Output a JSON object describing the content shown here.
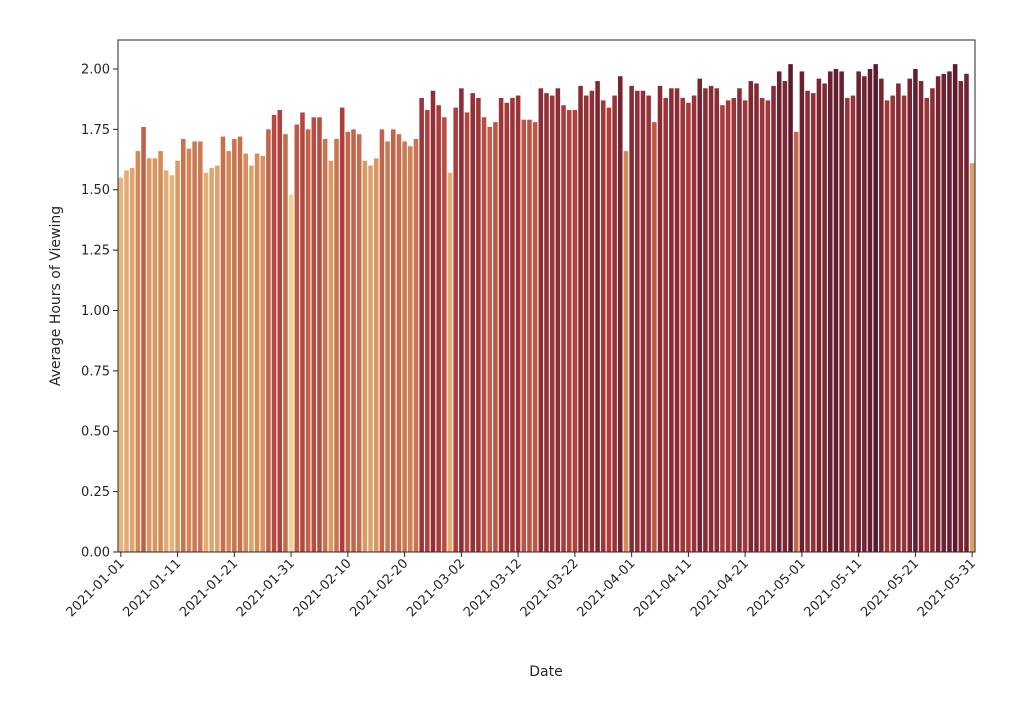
{
  "chart_data": {
    "type": "bar",
    "xlabel": "Date",
    "ylabel": "Average Hours of Viewing",
    "ylim": [
      0,
      2.12
    ],
    "yticks": [
      "0.00",
      "0.25",
      "0.50",
      "0.75",
      "1.00",
      "1.25",
      "1.50",
      "1.75",
      "2.00"
    ],
    "xtick_labels": [
      "2021-01-01",
      "2021-01-11",
      "2021-01-21",
      "2021-01-31",
      "2021-02-10",
      "2021-02-20",
      "2021-03-02",
      "2021-03-12",
      "2021-03-22",
      "2021-04-01",
      "2021-04-11",
      "2021-04-21",
      "2021-05-01",
      "2021-05-11",
      "2021-05-21",
      "2021-05-31"
    ],
    "grid": false,
    "colormap": [
      "#f1d494",
      "#d48a57",
      "#b13c3b",
      "#5c1a2c"
    ],
    "categories": [
      "2021-01-01",
      "2021-01-02",
      "2021-01-03",
      "2021-01-04",
      "2021-01-05",
      "2021-01-06",
      "2021-01-07",
      "2021-01-08",
      "2021-01-09",
      "2021-01-10",
      "2021-01-11",
      "2021-01-12",
      "2021-01-13",
      "2021-01-14",
      "2021-01-15",
      "2021-01-16",
      "2021-01-17",
      "2021-01-18",
      "2021-01-19",
      "2021-01-20",
      "2021-01-21",
      "2021-01-22",
      "2021-01-23",
      "2021-01-24",
      "2021-01-25",
      "2021-01-26",
      "2021-01-27",
      "2021-01-28",
      "2021-01-29",
      "2021-01-30",
      "2021-01-31",
      "2021-02-01",
      "2021-02-02",
      "2021-02-03",
      "2021-02-04",
      "2021-02-05",
      "2021-02-06",
      "2021-02-07",
      "2021-02-08",
      "2021-02-09",
      "2021-02-10",
      "2021-02-11",
      "2021-02-12",
      "2021-02-13",
      "2021-02-14",
      "2021-02-15",
      "2021-02-16",
      "2021-02-17",
      "2021-02-18",
      "2021-02-19",
      "2021-02-20",
      "2021-02-21",
      "2021-02-22",
      "2021-02-23",
      "2021-02-24",
      "2021-02-25",
      "2021-02-26",
      "2021-02-27",
      "2021-02-28",
      "2021-03-01",
      "2021-03-02",
      "2021-03-03",
      "2021-03-04",
      "2021-03-05",
      "2021-03-06",
      "2021-03-07",
      "2021-03-08",
      "2021-03-09",
      "2021-03-10",
      "2021-03-11",
      "2021-03-12",
      "2021-03-13",
      "2021-03-14",
      "2021-03-15",
      "2021-03-16",
      "2021-03-17",
      "2021-03-18",
      "2021-03-19",
      "2021-03-20",
      "2021-03-21",
      "2021-03-22",
      "2021-03-23",
      "2021-03-24",
      "2021-03-25",
      "2021-03-26",
      "2021-03-27",
      "2021-03-28",
      "2021-03-29",
      "2021-03-30",
      "2021-03-31",
      "2021-04-01",
      "2021-04-02",
      "2021-04-03",
      "2021-04-04",
      "2021-04-05",
      "2021-04-06",
      "2021-04-07",
      "2021-04-08",
      "2021-04-09",
      "2021-04-10",
      "2021-04-11",
      "2021-04-12",
      "2021-04-13",
      "2021-04-14",
      "2021-04-15",
      "2021-04-16",
      "2021-04-17",
      "2021-04-18",
      "2021-04-19",
      "2021-04-20",
      "2021-04-21",
      "2021-04-22",
      "2021-04-23",
      "2021-04-24",
      "2021-04-25",
      "2021-04-26",
      "2021-04-27",
      "2021-04-28",
      "2021-04-29",
      "2021-04-30",
      "2021-05-01",
      "2021-05-02",
      "2021-05-03",
      "2021-05-04",
      "2021-05-05",
      "2021-05-06",
      "2021-05-07",
      "2021-05-08",
      "2021-05-09",
      "2021-05-10",
      "2021-05-11",
      "2021-05-12",
      "2021-05-13",
      "2021-05-14",
      "2021-05-15",
      "2021-05-16",
      "2021-05-17",
      "2021-05-18",
      "2021-05-19",
      "2021-05-20",
      "2021-05-21",
      "2021-05-22",
      "2021-05-23",
      "2021-05-24",
      "2021-05-25",
      "2021-05-26",
      "2021-05-27",
      "2021-05-28",
      "2021-05-29",
      "2021-05-30",
      "2021-05-31"
    ],
    "values": [
      1.55,
      1.58,
      1.59,
      1.66,
      1.76,
      1.63,
      1.63,
      1.66,
      1.58,
      1.56,
      1.62,
      1.71,
      1.67,
      1.7,
      1.7,
      1.57,
      1.59,
      1.6,
      1.72,
      1.66,
      1.71,
      1.72,
      1.65,
      1.6,
      1.65,
      1.64,
      1.75,
      1.81,
      1.83,
      1.73,
      1.48,
      1.77,
      1.82,
      1.75,
      1.8,
      1.8,
      1.71,
      1.62,
      1.71,
      1.84,
      1.74,
      1.75,
      1.73,
      1.62,
      1.6,
      1.63,
      1.75,
      1.7,
      1.75,
      1.73,
      1.7,
      1.68,
      1.71,
      1.88,
      1.83,
      1.91,
      1.85,
      1.8,
      1.57,
      1.84,
      1.92,
      1.82,
      1.9,
      1.88,
      1.8,
      1.76,
      1.78,
      1.88,
      1.86,
      1.88,
      1.89,
      1.79,
      1.79,
      1.78,
      1.92,
      1.9,
      1.89,
      1.92,
      1.85,
      1.83,
      1.83,
      1.93,
      1.89,
      1.91,
      1.95,
      1.87,
      1.84,
      1.89,
      1.97,
      1.66,
      1.93,
      1.91,
      1.91,
      1.89,
      1.78,
      1.93,
      1.88,
      1.92,
      1.92,
      1.88,
      1.86,
      1.89,
      1.96,
      1.92,
      1.93,
      1.92,
      1.85,
      1.87,
      1.88,
      1.92,
      1.87,
      1.95,
      1.94,
      1.88,
      1.87,
      1.93,
      1.99,
      1.95,
      2.02,
      1.74,
      1.99,
      1.91,
      1.9,
      1.96,
      1.94,
      1.99,
      2.0,
      1.99,
      1.88,
      1.89,
      1.99,
      1.97,
      2.0,
      2.02,
      1.96,
      1.87,
      1.89,
      1.94,
      1.89,
      1.96,
      2.0,
      1.95,
      1.88,
      1.92,
      1.97,
      1.98,
      1.99,
      2.02,
      1.95,
      1.98,
      1.61
    ]
  }
}
